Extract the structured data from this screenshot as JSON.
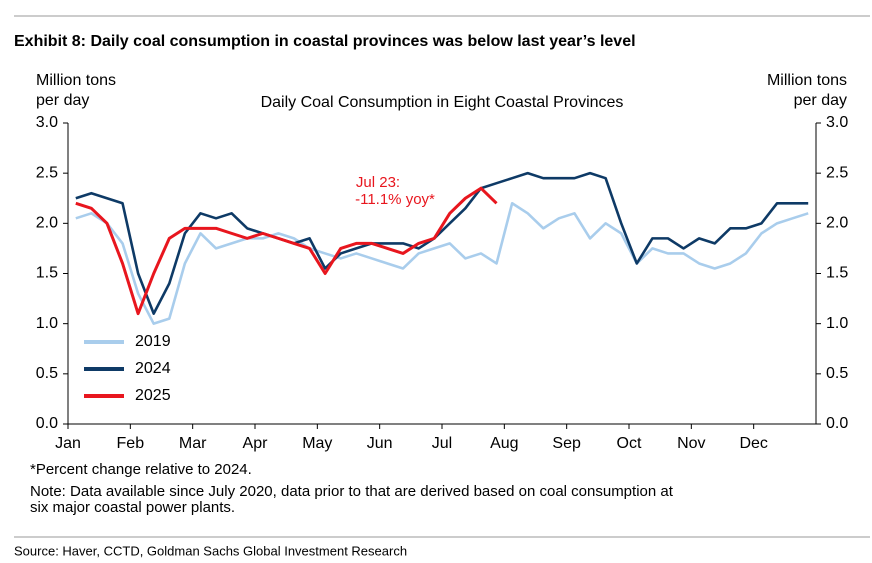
{
  "chart_data": {
    "type": "line",
    "title": "Exhibit 8: Daily coal consumption in coastal provinces was below last year’s level",
    "subtitle": "Daily Coal Consumption in Eight Coastal Provinces",
    "y_label": [
      "Million tons",
      "per day"
    ],
    "y2_label": [
      "Million tons",
      "per day"
    ],
    "categories": [
      "Jan",
      null,
      null,
      null,
      "Feb",
      null,
      null,
      null,
      "Mar",
      null,
      null,
      null,
      "Apr",
      null,
      null,
      null,
      "May",
      null,
      null,
      null,
      "Jun",
      null,
      null,
      null,
      "Jul",
      null,
      null,
      null,
      "Aug",
      null,
      null,
      null,
      "Sep",
      null,
      null,
      null,
      "Oct",
      null,
      null,
      null,
      "Nov",
      null,
      null,
      null,
      "Dec",
      null,
      null,
      null
    ],
    "series": [
      {
        "name": "2019",
        "color": "#a9cdec",
        "values": [
          2.05,
          2.1,
          2.0,
          1.8,
          1.3,
          1.0,
          1.05,
          1.6,
          1.9,
          1.75,
          1.8,
          1.85,
          1.85,
          1.9,
          1.85,
          1.75,
          1.7,
          1.65,
          1.7,
          1.65,
          1.6,
          1.55,
          1.7,
          1.75,
          1.8,
          1.65,
          1.7,
          1.6,
          2.2,
          2.1,
          1.95,
          2.05,
          2.1,
          1.85,
          2.0,
          1.9,
          1.6,
          1.75,
          1.7,
          1.7,
          1.6,
          1.55,
          1.6,
          1.7,
          1.9,
          2.0,
          2.05,
          2.1
        ]
      },
      {
        "name": "2024",
        "color": "#0e3a66",
        "values": [
          2.25,
          2.3,
          2.25,
          2.2,
          1.5,
          1.1,
          1.4,
          1.9,
          2.1,
          2.05,
          2.1,
          1.95,
          1.9,
          1.85,
          1.8,
          1.85,
          1.55,
          1.7,
          1.75,
          1.8,
          1.8,
          1.8,
          1.75,
          1.85,
          2.0,
          2.15,
          2.35,
          2.4,
          2.45,
          2.5,
          2.45,
          2.45,
          2.45,
          2.5,
          2.45,
          2.0,
          1.6,
          1.85,
          1.85,
          1.75,
          1.85,
          1.8,
          1.95,
          1.95,
          2.0,
          2.2,
          2.2,
          2.2
        ]
      },
      {
        "name": "2025",
        "color": "#e8161e",
        "values": [
          2.2,
          2.15,
          2.0,
          1.6,
          1.1,
          1.5,
          1.85,
          1.95,
          1.95,
          1.95,
          1.9,
          1.85,
          1.9,
          1.85,
          1.8,
          1.75,
          1.5,
          1.75,
          1.8,
          1.8,
          1.75,
          1.7,
          1.8,
          1.85,
          2.1,
          2.25,
          2.35,
          2.2,
          null,
          null,
          null,
          null,
          null,
          null,
          null,
          null,
          null,
          null,
          null,
          null,
          null,
          null,
          null,
          null,
          null,
          null,
          null,
          null
        ]
      }
    ],
    "annotation": [
      "Jul 23:",
      "-11.1% yoy*"
    ],
    "ylim": [
      0,
      3
    ],
    "yticks": [
      {
        "value": 0,
        "label": "0.0"
      },
      {
        "value": 0.5,
        "label": "0.5"
      },
      {
        "value": 1,
        "label": "1.0"
      },
      {
        "value": 1.5,
        "label": "1.5"
      },
      {
        "value": 2,
        "label": "2.0"
      },
      {
        "value": 2.5,
        "label": "2.5"
      },
      {
        "value": 3,
        "label": "3.0"
      }
    ],
    "y2lim": [
      0,
      3
    ],
    "y2ticks": [
      {
        "value": 0,
        "label": "0.0"
      },
      {
        "value": 0.5,
        "label": "0.5"
      },
      {
        "value": 1,
        "label": "1.0"
      },
      {
        "value": 1.5,
        "label": "1.5"
      },
      {
        "value": 2,
        "label": "2.0"
      },
      {
        "value": 2.5,
        "label": "2.5"
      },
      {
        "value": 3,
        "label": "3.0"
      }
    ],
    "grid": false,
    "legend": "lower left",
    "notes": [
      "*Percent change relative to 2024.",
      "Note: Data available since July 2020, data prior to that are derived based on coal consumption at",
      "six major coastal power plants."
    ],
    "source": "Source: Haver, CCTD, Goldman Sachs Global Investment Research"
  }
}
